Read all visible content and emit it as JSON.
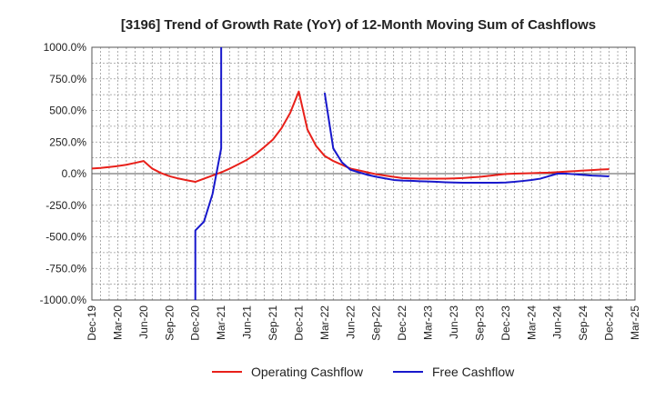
{
  "chart_data": {
    "type": "line",
    "title": "[3196]  Trend of Growth Rate (YoY) of 12-Month Moving Sum of Cashflows",
    "xlabel": "",
    "ylabel": "",
    "ylim": [
      -1000,
      1000
    ],
    "y_ticks": [
      "1000.0%",
      "750.0%",
      "500.0%",
      "250.0%",
      "0.0%",
      "-250.0%",
      "-500.0%",
      "-750.0%",
      "-1000.0%"
    ],
    "y_tick_values": [
      1000,
      750,
      500,
      250,
      0,
      -250,
      -500,
      -750,
      -1000
    ],
    "x_ticks": [
      "Dec-19",
      "Mar-20",
      "Jun-20",
      "Sep-20",
      "Dec-20",
      "Mar-21",
      "Jun-21",
      "Sep-21",
      "Dec-21",
      "Mar-22",
      "Jun-22",
      "Sep-22",
      "Dec-22",
      "Mar-23",
      "Jun-23",
      "Sep-23",
      "Dec-23",
      "Mar-24",
      "Jun-24",
      "Sep-24",
      "Dec-24",
      "Mar-25"
    ],
    "grid": true,
    "legend_position": "bottom",
    "series": [
      {
        "name": "Operating Cashflow",
        "color": "#e8201a",
        "x": [
          "Dec-19",
          "Jan-20",
          "Feb-20",
          "Mar-20",
          "Apr-20",
          "May-20",
          "Jun-20",
          "Jul-20",
          "Aug-20",
          "Sep-20",
          "Oct-20",
          "Nov-20",
          "Dec-20",
          "Jan-21",
          "Feb-21",
          "Mar-21",
          "Apr-21",
          "May-21",
          "Jun-21",
          "Jul-21",
          "Aug-21",
          "Sep-21",
          "Oct-21",
          "Nov-21",
          "Dec-21",
          "Jan-22",
          "Feb-22",
          "Mar-22",
          "Apr-22",
          "May-22",
          "Jun-22",
          "Jul-22",
          "Aug-22",
          "Sep-22",
          "Oct-22",
          "Nov-22",
          "Dec-22",
          "Jan-23",
          "Feb-23",
          "Mar-23",
          "Apr-23",
          "May-23",
          "Jun-23",
          "Jul-23",
          "Aug-23",
          "Sep-23",
          "Oct-23",
          "Nov-23",
          "Dec-23",
          "Jan-24",
          "Feb-24",
          "Mar-24",
          "Apr-24",
          "May-24",
          "Jun-24",
          "Jul-24",
          "Aug-24",
          "Sep-24",
          "Oct-24",
          "Nov-24",
          "Dec-24"
        ],
        "values": [
          40,
          45,
          52,
          60,
          70,
          85,
          100,
          40,
          5,
          -20,
          -38,
          -52,
          -65,
          -40,
          -15,
          10,
          40,
          75,
          110,
          155,
          210,
          270,
          360,
          480,
          650,
          350,
          220,
          140,
          100,
          70,
          40,
          25,
          10,
          -5,
          -15,
          -25,
          -35,
          -38,
          -40,
          -40,
          -40,
          -40,
          -38,
          -35,
          -30,
          -25,
          -18,
          -10,
          -3,
          0,
          2,
          4,
          6,
          8,
          12,
          16,
          20,
          24,
          28,
          32,
          35
        ]
      },
      {
        "name": "Free Cashflow",
        "color": "#1818cc",
        "segments": [
          {
            "x": [
              "Dec-20",
              "Dec-20",
              "Jan-21",
              "Feb-21",
              "Mar-21",
              "Mar-21"
            ],
            "values": [
              -1000,
              -450,
              -380,
              -160,
              200,
              380
            ]
          },
          {
            "x": [
              "Mar-21",
              "Mar-21"
            ],
            "values": [
              380,
              1000
            ]
          },
          {
            "x": [
              "Mar-22",
              "Apr-22",
              "May-22",
              "Jun-22",
              "Jul-22",
              "Aug-22",
              "Sep-22",
              "Oct-22",
              "Nov-22",
              "Dec-22",
              "Jan-23",
              "Feb-23",
              "Mar-23",
              "Apr-23",
              "May-23",
              "Jun-23",
              "Jul-23",
              "Aug-23",
              "Sep-23",
              "Oct-23",
              "Nov-23",
              "Dec-23",
              "Jan-24",
              "Feb-24",
              "Mar-24",
              "Apr-24",
              "May-24",
              "Jun-24",
              "Jul-24",
              "Aug-24",
              "Sep-24",
              "Oct-24",
              "Nov-24",
              "Dec-24"
            ],
            "values": [
              640,
              200,
              90,
              30,
              10,
              -10,
              -25,
              -38,
              -50,
              -55,
              -57,
              -60,
              -62,
              -65,
              -68,
              -70,
              -72,
              -72,
              -72,
              -72,
              -72,
              -70,
              -65,
              -58,
              -50,
              -40,
              -20,
              0,
              0,
              -5,
              -10,
              -15,
              -18,
              -22
            ]
          }
        ]
      }
    ]
  }
}
